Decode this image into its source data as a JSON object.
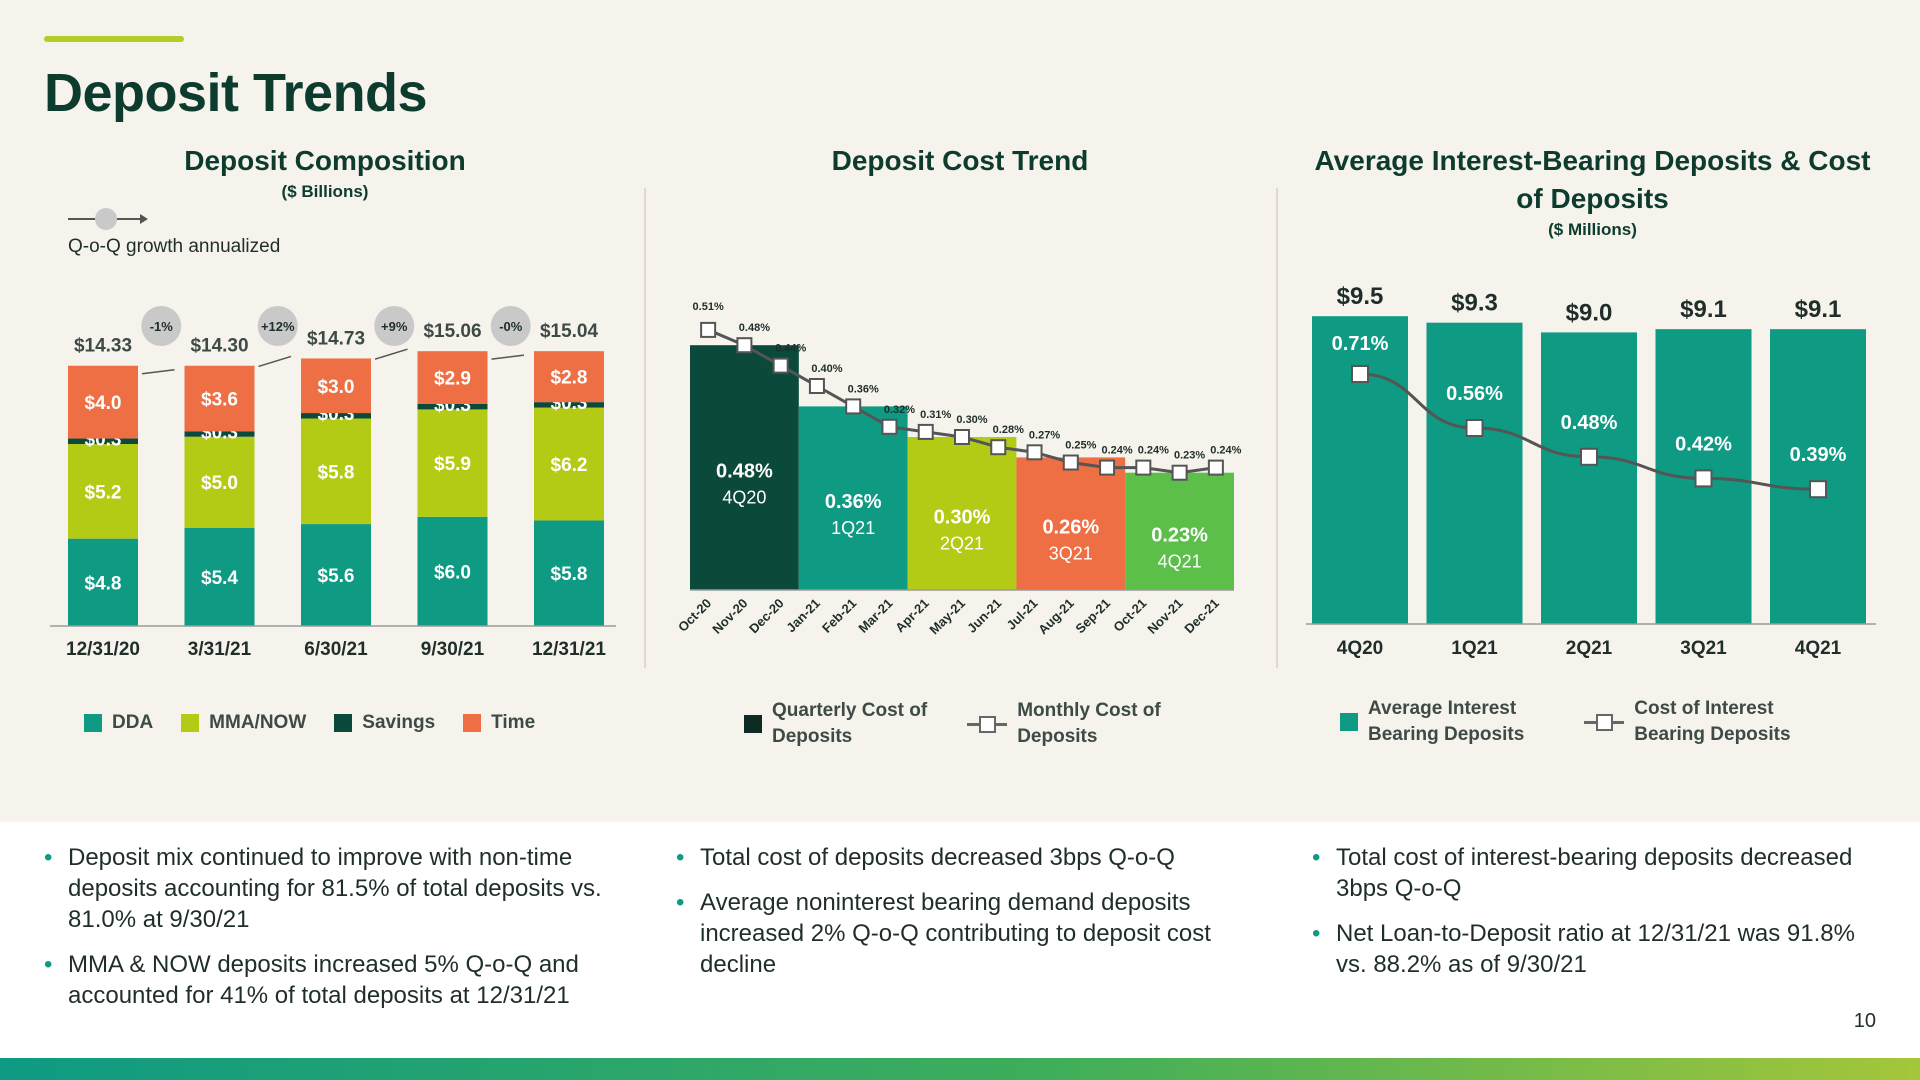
{
  "page": {
    "title": "Deposit Trends",
    "page_number": "10"
  },
  "colors": {
    "dda": "#0e9a83",
    "mma_now": "#b4cb16",
    "savings": "#0b4a3a",
    "time": "#ef6f45",
    "quarter_4q20": "#0b4a3a",
    "quarter_1q21": "#0e9a83",
    "quarter_2q21": "#b4cb16",
    "quarter_3q21": "#ef6f45",
    "quarter_4q21": "#5bbf4a",
    "line": "#555555",
    "growth_circle": "#c9c9c9"
  },
  "chart_data": [
    {
      "type": "bar",
      "stacked": true,
      "title": "Deposit Composition",
      "subtitle": "($ Billions)",
      "categories": [
        "12/31/20",
        "3/31/21",
        "6/30/21",
        "9/30/21",
        "12/31/21"
      ],
      "series": [
        {
          "name": "DDA",
          "values": [
            4.8,
            5.4,
            5.6,
            6.0,
            5.8
          ],
          "labels": [
            "$4.8",
            "$5.4",
            "$5.6",
            "$6.0",
            "$5.8"
          ]
        },
        {
          "name": "MMA/NOW",
          "values": [
            5.2,
            5.0,
            5.8,
            5.9,
            6.2
          ],
          "labels": [
            "$5.2",
            "$5.0",
            "$5.8",
            "$5.9",
            "$6.2"
          ]
        },
        {
          "name": "Savings",
          "values": [
            0.3,
            0.3,
            0.3,
            0.3,
            0.3
          ],
          "labels": [
            "$0.3",
            "$0.3",
            "$0.3",
            "$0.3",
            "$0.3"
          ]
        },
        {
          "name": "Time",
          "values": [
            4.0,
            3.6,
            3.0,
            2.9,
            2.8
          ],
          "labels": [
            "$4.0",
            "$3.6",
            "$3.0",
            "$2.9",
            "$2.8"
          ]
        }
      ],
      "totals": [
        "$14.33",
        "$14.30",
        "$14.73",
        "$15.06",
        "$15.04"
      ],
      "growth": [
        "-1%",
        "+12%",
        "+9%",
        "-0%"
      ],
      "growth_legend": "Q-o-Q growth annualized",
      "legend_position": "bottom"
    },
    {
      "type": "bar+line",
      "title": "Deposit Cost Trend",
      "quarters": [
        {
          "label": "4Q20",
          "value": 0.48,
          "value_label": "0.48%"
        },
        {
          "label": "1Q21",
          "value": 0.36,
          "value_label": "0.36%"
        },
        {
          "label": "2Q21",
          "value": 0.3,
          "value_label": "0.30%"
        },
        {
          "label": "3Q21",
          "value": 0.26,
          "value_label": "0.26%"
        },
        {
          "label": "4Q21",
          "value": 0.23,
          "value_label": "0.23%"
        }
      ],
      "months": [
        "Oct-20",
        "Nov-20",
        "Dec-20",
        "Jan-21",
        "Feb-21",
        "Mar-21",
        "Apr-21",
        "May-21",
        "Jun-21",
        "Jul-21",
        "Aug-21",
        "Sep-21",
        "Oct-21",
        "Nov-21",
        "Dec-21"
      ],
      "monthly_values": [
        0.51,
        0.48,
        0.44,
        0.4,
        0.36,
        0.32,
        0.31,
        0.3,
        0.28,
        0.27,
        0.25,
        0.24,
        0.24,
        0.23,
        0.24
      ],
      "monthly_labels": [
        "0.51%",
        "0.48%",
        "0.44%",
        "0.40%",
        "0.36%",
        "0.32%",
        "0.31%",
        "0.30%",
        "0.28%",
        "0.27%",
        "0.25%",
        "0.24%",
        "0.24%",
        "0.23%",
        "0.24%"
      ],
      "legend": {
        "bar": "Quarterly Cost of Deposits",
        "line": "Monthly Cost of Deposits"
      },
      "legend_position": "bottom"
    },
    {
      "type": "bar+line",
      "title": "Average Interest-Bearing Deposits & Cost of Deposits",
      "subtitle": "($ Millions)",
      "categories": [
        "4Q20",
        "1Q21",
        "2Q21",
        "3Q21",
        "4Q21"
      ],
      "bar_values": [
        9.5,
        9.3,
        9.0,
        9.1,
        9.1
      ],
      "bar_labels": [
        "$9.5",
        "$9.3",
        "$9.0",
        "$9.1",
        "$9.1"
      ],
      "line_values": [
        0.71,
        0.56,
        0.48,
        0.42,
        0.39
      ],
      "line_labels": [
        "0.71%",
        "0.56%",
        "0.48%",
        "0.42%",
        "0.39%"
      ],
      "legend": {
        "bar": "Average Interest Bearing Deposits",
        "line": "Cost of Interest Bearing Deposits"
      },
      "legend_position": "bottom"
    }
  ],
  "legends": {
    "composition": [
      "DDA",
      "MMA/NOW",
      "Savings",
      "Time"
    ],
    "cost_trend_bar_line1": "Quarterly Cost of",
    "cost_trend_bar_line2": "Deposits",
    "cost_trend_line_line1": "Monthly Cost of",
    "cost_trend_line_line2": "Deposits",
    "ib_bar_line1": "Average Interest",
    "ib_bar_line2": "Bearing Deposits",
    "ib_line_line1": "Cost of Interest",
    "ib_line_line2": "Bearing Deposits"
  },
  "titles": {
    "ib_line1": "Average Interest-Bearing Deposits & Cost",
    "ib_line2": "of Deposits"
  },
  "bullets": {
    "left": [
      "Deposit mix continued to improve with non-time deposits accounting for 81.5% of total deposits vs. 81.0% at 9/30/21",
      "MMA & NOW deposits increased 5% Q-o-Q and accounted for 41% of total deposits at 12/31/21"
    ],
    "middle": [
      "Total cost of deposits decreased 3bps Q-o-Q",
      "Average noninterest bearing demand deposits increased 2% Q-o-Q contributing to deposit cost decline"
    ],
    "right": [
      "Total cost of interest-bearing deposits decreased 3bps Q-o-Q",
      "Net Loan-to-Deposit ratio at 12/31/21 was 91.8% vs. 88.2% as of 9/30/21"
    ]
  }
}
